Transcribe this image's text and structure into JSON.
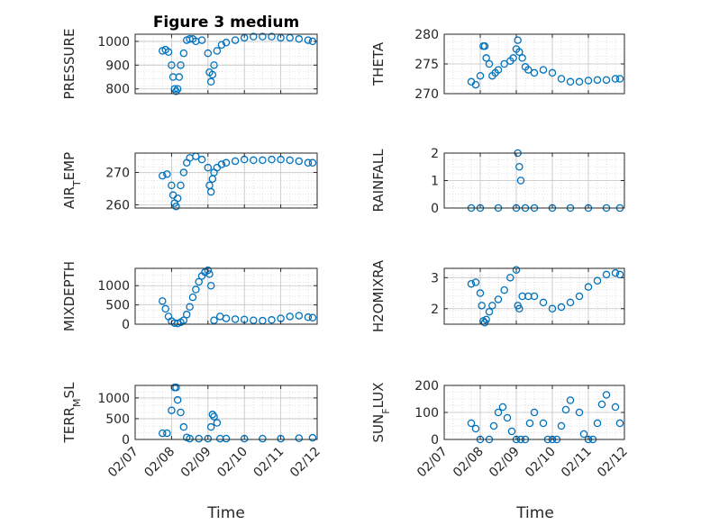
{
  "figure": {
    "title": "Figure 3 medium",
    "xlabel": "Time",
    "marker_color": "#0072bd",
    "grid": true
  },
  "chart_data": [
    {
      "type": "scatter",
      "title": "Figure 3 medium",
      "ylabel": "PRESSURE",
      "ylim": [
        780,
        1030
      ],
      "yticks": [
        800,
        900,
        1000
      ],
      "x": [
        "02/07 18:00",
        "02/07 20:00",
        "02/07 22:00",
        "02/08 00:00",
        "02/08 01:00",
        "02/08 02:00",
        "02/08 03:00",
        "02/08 04:00",
        "02/08 05:00",
        "02/08 06:00",
        "02/08 08:00",
        "02/08 10:00",
        "02/08 12:00",
        "02/08 14:00",
        "02/08 16:00",
        "02/08 20:00",
        "02/09 00:00",
        "02/09 01:00",
        "02/09 02:00",
        "02/09 03:00",
        "02/09 04:00",
        "02/09 06:00",
        "02/09 09:00",
        "02/09 12:00",
        "02/09 18:00",
        "02/10 00:00",
        "02/10 06:00",
        "02/10 12:00",
        "02/10 18:00",
        "02/11 00:00",
        "02/11 06:00",
        "02/11 12:00",
        "02/11 18:00",
        "02/11 21:00"
      ],
      "y": [
        960,
        965,
        955,
        900,
        850,
        800,
        790,
        800,
        850,
        900,
        950,
        1005,
        1010,
        1010,
        1000,
        1005,
        950,
        870,
        830,
        860,
        900,
        960,
        985,
        995,
        1005,
        1015,
        1020,
        1020,
        1020,
        1015,
        1015,
        1010,
        1005,
        1000
      ]
    },
    {
      "type": "scatter",
      "ylabel": "THETA",
      "ylim": [
        270,
        280
      ],
      "yticks": [
        270,
        275,
        280
      ],
      "x": [
        "02/07 18:00",
        "02/07 21:00",
        "02/08 00:00",
        "02/08 02:00",
        "02/08 03:00",
        "02/08 04:00",
        "02/08 06:00",
        "02/08 08:00",
        "02/08 10:00",
        "02/08 12:00",
        "02/08 16:00",
        "02/08 20:00",
        "02/08 22:00",
        "02/09 00:00",
        "02/09 01:00",
        "02/09 02:00",
        "02/09 04:00",
        "02/09 06:00",
        "02/09 08:00",
        "02/09 12:00",
        "02/09 18:00",
        "02/10 00:00",
        "02/10 06:00",
        "02/10 12:00",
        "02/10 18:00",
        "02/11 00:00",
        "02/11 06:00",
        "02/11 12:00",
        "02/11 18:00",
        "02/11 21:00"
      ],
      "y": [
        272,
        271.5,
        273,
        278,
        278,
        276,
        275,
        273,
        273.5,
        274,
        275,
        275.5,
        276,
        277.5,
        279,
        277,
        276,
        274.5,
        274,
        273.5,
        274,
        273.5,
        272.5,
        272,
        272,
        272.2,
        272.3,
        272.3,
        272.5,
        272.5
      ]
    },
    {
      "type": "scatter",
      "ylabel": "AIR_TEMP",
      "ylim": [
        259,
        276
      ],
      "yticks": [
        260,
        270
      ],
      "x": [
        "02/07 18:00",
        "02/07 21:00",
        "02/08 00:00",
        "02/08 01:00",
        "02/08 02:00",
        "02/08 03:00",
        "02/08 04:00",
        "02/08 06:00",
        "02/08 08:00",
        "02/08 10:00",
        "02/08 12:00",
        "02/08 16:00",
        "02/08 20:00",
        "02/09 00:00",
        "02/09 01:00",
        "02/09 02:00",
        "02/09 03:00",
        "02/09 04:00",
        "02/09 06:00",
        "02/09 09:00",
        "02/09 12:00",
        "02/09 18:00",
        "02/10 00:00",
        "02/10 06:00",
        "02/10 12:00",
        "02/10 18:00",
        "02/11 00:00",
        "02/11 06:00",
        "02/11 12:00",
        "02/11 18:00",
        "02/11 21:00"
      ],
      "y": [
        269,
        269.5,
        266,
        263,
        260.5,
        259.5,
        262,
        266,
        270,
        273,
        274.5,
        275,
        274,
        271.5,
        266,
        264,
        268,
        270,
        271.5,
        272.5,
        273,
        273.5,
        274,
        273.8,
        273.8,
        274,
        274,
        273.8,
        273.5,
        273,
        273
      ]
    },
    {
      "type": "scatter",
      "ylabel": "RAINFALL",
      "ylim": [
        0,
        2
      ],
      "yticks": [
        0,
        1,
        2
      ],
      "x": [
        "02/07 18:00",
        "02/08 00:00",
        "02/08 12:00",
        "02/09 00:00",
        "02/09 01:00",
        "02/09 02:00",
        "02/09 03:00",
        "02/09 06:00",
        "02/09 12:00",
        "02/10 00:00",
        "02/10 12:00",
        "02/11 00:00",
        "02/11 12:00",
        "02/11 21:00"
      ],
      "y": [
        0,
        0,
        0,
        0,
        2,
        1.5,
        1,
        0,
        0,
        0,
        0,
        0,
        0,
        0
      ]
    },
    {
      "type": "scatter",
      "ylabel": "MIXDEPTH",
      "ylim": [
        0,
        1450
      ],
      "yticks": [
        0,
        500,
        1000
      ],
      "x": [
        "02/07 18:00",
        "02/07 20:00",
        "02/07 22:00",
        "02/08 00:00",
        "02/08 02:00",
        "02/08 04:00",
        "02/08 06:00",
        "02/08 08:00",
        "02/08 10:00",
        "02/08 12:00",
        "02/08 14:00",
        "02/08 16:00",
        "02/08 18:00",
        "02/08 20:00",
        "02/08 22:00",
        "02/09 00:00",
        "02/09 01:00",
        "02/09 02:00",
        "02/09 04:00",
        "02/09 08:00",
        "02/09 12:00",
        "02/09 18:00",
        "02/10 00:00",
        "02/10 06:00",
        "02/10 12:00",
        "02/10 18:00",
        "02/11 00:00",
        "02/11 06:00",
        "02/11 12:00",
        "02/11 18:00",
        "02/11 21:00"
      ],
      "y": [
        600,
        400,
        200,
        80,
        30,
        20,
        50,
        100,
        250,
        450,
        700,
        900,
        1100,
        1250,
        1350,
        1400,
        1300,
        1000,
        100,
        200,
        150,
        130,
        120,
        100,
        90,
        110,
        150,
        200,
        220,
        180,
        170
      ]
    },
    {
      "type": "scatter",
      "ylabel": "H2OMIXRA",
      "ylim": [
        1.5,
        3.3
      ],
      "yticks": [
        2,
        3
      ],
      "x": [
        "02/07 18:00",
        "02/07 21:00",
        "02/08 00:00",
        "02/08 01:00",
        "02/08 02:00",
        "02/08 03:00",
        "02/08 04:00",
        "02/08 06:00",
        "02/08 08:00",
        "02/08 12:00",
        "02/08 16:00",
        "02/08 20:00",
        "02/09 00:00",
        "02/09 01:00",
        "02/09 02:00",
        "02/09 04:00",
        "02/09 08:00",
        "02/09 12:00",
        "02/09 18:00",
        "02/10 00:00",
        "02/10 06:00",
        "02/10 12:00",
        "02/10 18:00",
        "02/11 00:00",
        "02/11 06:00",
        "02/11 12:00",
        "02/11 18:00",
        "02/11 21:00"
      ],
      "y": [
        2.8,
        2.85,
        2.5,
        2.1,
        1.6,
        1.55,
        1.65,
        1.9,
        2.1,
        2.3,
        2.6,
        3.0,
        3.25,
        2.1,
        2.0,
        2.4,
        2.4,
        2.4,
        2.2,
        2.0,
        2.05,
        2.2,
        2.4,
        2.7,
        2.9,
        3.1,
        3.15,
        3.1
      ]
    },
    {
      "type": "scatter",
      "ylabel": "TERR_MSL",
      "ylim": [
        0,
        1300
      ],
      "yticks": [
        0,
        500,
        1000
      ],
      "x": [
        "02/07 18:00",
        "02/07 21:00",
        "02/08 00:00",
        "02/08 02:00",
        "02/08 03:00",
        "02/08 04:00",
        "02/08 06:00",
        "02/08 08:00",
        "02/08 10:00",
        "02/08 12:00",
        "02/08 18:00",
        "02/09 00:00",
        "02/09 02:00",
        "02/09 03:00",
        "02/09 04:00",
        "02/09 06:00",
        "02/09 08:00",
        "02/09 12:00",
        "02/10 00:00",
        "02/10 12:00",
        "02/11 00:00",
        "02/11 12:00",
        "02/11 21:00"
      ],
      "y": [
        150,
        150,
        700,
        1250,
        1250,
        950,
        650,
        300,
        50,
        20,
        20,
        20,
        300,
        600,
        550,
        400,
        20,
        20,
        20,
        20,
        20,
        30,
        40
      ]
    },
    {
      "type": "scatter",
      "ylabel": "SUN_FLUX",
      "ylim": [
        0,
        200
      ],
      "yticks": [
        0,
        100,
        200
      ],
      "x": [
        "02/07 18:00",
        "02/07 21:00",
        "02/08 00:00",
        "02/08 06:00",
        "02/08 09:00",
        "02/08 12:00",
        "02/08 15:00",
        "02/08 18:00",
        "02/08 21:00",
        "02/09 00:00",
        "02/09 03:00",
        "02/09 06:00",
        "02/09 09:00",
        "02/09 12:00",
        "02/09 18:00",
        "02/09 21:00",
        "02/10 00:00",
        "02/10 03:00",
        "02/10 06:00",
        "02/10 09:00",
        "02/10 12:00",
        "02/10 18:00",
        "02/10 21:00",
        "02/11 00:00",
        "02/11 03:00",
        "02/11 06:00",
        "02/11 09:00",
        "02/11 12:00",
        "02/11 18:00",
        "02/11 21:00"
      ],
      "y": [
        60,
        40,
        0,
        0,
        50,
        100,
        120,
        80,
        30,
        0,
        0,
        0,
        60,
        100,
        60,
        0,
        0,
        0,
        50,
        110,
        145,
        100,
        20,
        0,
        0,
        60,
        130,
        165,
        120,
        60
      ]
    }
  ],
  "x_axis": {
    "ticks": [
      "02/07",
      "02/08",
      "02/09",
      "02/10",
      "02/11",
      "02/12"
    ]
  }
}
